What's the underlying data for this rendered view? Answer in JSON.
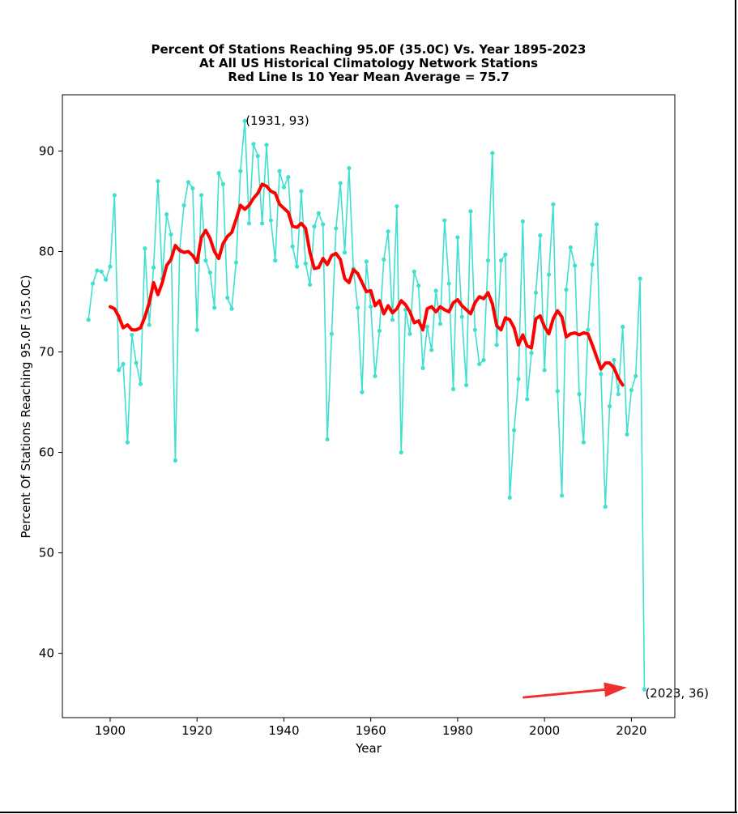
{
  "chart_data": {
    "type": "line",
    "title": [
      "Percent Of Stations Reaching 95.0F (35.0C) Vs. Year 1895-2023",
      "At All US Historical Climatology Network Stations",
      "Red Line Is 10 Year Mean  Average = 75.7"
    ],
    "xlabel": "Year",
    "ylabel": "Percent Of Stations Reaching 95.0F (35.0C)",
    "xlim": [
      1889,
      2030
    ],
    "ylim": [
      33.6,
      95.6
    ],
    "xticks": [
      1900,
      1920,
      1940,
      1960,
      1980,
      2000,
      2020
    ],
    "yticks": [
      40,
      50,
      60,
      70,
      80,
      90
    ],
    "grid": false,
    "colors": {
      "annual": "#40e0d0",
      "mean": "#ff0000",
      "arrow": "#f03030"
    },
    "series": [
      {
        "role": "annual",
        "x": [
          1895,
          1896,
          1897,
          1898,
          1899,
          1900,
          1901,
          1902,
          1903,
          1904,
          1905,
          1906,
          1907,
          1908,
          1909,
          1910,
          1911,
          1912,
          1913,
          1914,
          1915,
          1916,
          1917,
          1918,
          1919,
          1920,
          1921,
          1922,
          1923,
          1924,
          1925,
          1926,
          1927,
          1928,
          1929,
          1930,
          1931,
          1932,
          1933,
          1934,
          1935,
          1936,
          1937,
          1938,
          1939,
          1940,
          1941,
          1942,
          1943,
          1944,
          1945,
          1946,
          1947,
          1948,
          1949,
          1950,
          1951,
          1952,
          1953,
          1954,
          1955,
          1956,
          1957,
          1958,
          1959,
          1960,
          1961,
          1962,
          1963,
          1964,
          1965,
          1966,
          1967,
          1968,
          1969,
          1970,
          1971,
          1972,
          1973,
          1974,
          1975,
          1976,
          1977,
          1978,
          1979,
          1980,
          1981,
          1982,
          1983,
          1984,
          1985,
          1986,
          1987,
          1988,
          1989,
          1990,
          1991,
          1992,
          1993,
          1994,
          1995,
          1996,
          1997,
          1998,
          1999,
          2000,
          2001,
          2002,
          2003,
          2004,
          2005,
          2006,
          2007,
          2008,
          2009,
          2010,
          2011,
          2012,
          2013,
          2014,
          2015,
          2016,
          2017,
          2018,
          2019,
          2020,
          2021,
          2022,
          2023
        ],
        "values": [
          73.2,
          76.8,
          78.1,
          78.0,
          77.2,
          78.5,
          85.6,
          68.2,
          68.8,
          61.0,
          71.7,
          68.9,
          66.8,
          80.3,
          72.7,
          78.4,
          87.0,
          77.3,
          83.7,
          81.7,
          59.2,
          80.2,
          84.6,
          86.9,
          86.3,
          72.2,
          85.6,
          79.1,
          77.9,
          74.4,
          87.8,
          86.7,
          75.4,
          74.3,
          78.9,
          88.0,
          93.0,
          82.8,
          90.7,
          89.5,
          82.8,
          90.6,
          83.1,
          79.1,
          88.0,
          86.4,
          87.4,
          80.5,
          78.5,
          86.0,
          78.8,
          76.7,
          82.5,
          83.8,
          82.7,
          61.3,
          71.8,
          82.3,
          86.8,
          79.9,
          88.3,
          78.3,
          74.4,
          66.0,
          79.0,
          74.5,
          67.6,
          72.1,
          79.2,
          82.0,
          73.2,
          84.5,
          60.0,
          74.2,
          71.8,
          78.0,
          76.6,
          68.4,
          72.5,
          70.2,
          76.1,
          72.8,
          83.1,
          76.8,
          66.3,
          81.4,
          73.5,
          66.7,
          84.0,
          72.2,
          68.8,
          69.2,
          79.1,
          89.8,
          70.7,
          79.1,
          79.7,
          55.5,
          62.2,
          67.3,
          83.0,
          65.3,
          69.9,
          75.9,
          81.6,
          68.2,
          77.7,
          84.7,
          66.1,
          55.7,
          76.2,
          80.4,
          78.6,
          65.8,
          61.0,
          72.2,
          78.7,
          82.7,
          67.8,
          54.6,
          64.6,
          69.2,
          65.8,
          72.5,
          61.8,
          66.2,
          67.6,
          77.3,
          36.4
        ]
      },
      {
        "role": "mean",
        "x": [
          1900,
          1901,
          1902,
          1903,
          1904,
          1905,
          1906,
          1907,
          1908,
          1909,
          1910,
          1911,
          1912,
          1913,
          1914,
          1915,
          1916,
          1917,
          1918,
          1919,
          1920,
          1921,
          1922,
          1923,
          1924,
          1925,
          1926,
          1927,
          1928,
          1929,
          1930,
          1931,
          1932,
          1933,
          1934,
          1935,
          1936,
          1937,
          1938,
          1939,
          1940,
          1941,
          1942,
          1943,
          1944,
          1945,
          1946,
          1947,
          1948,
          1949,
          1950,
          1951,
          1952,
          1953,
          1954,
          1955,
          1956,
          1957,
          1958,
          1959,
          1960,
          1961,
          1962,
          1963,
          1964,
          1965,
          1966,
          1967,
          1968,
          1969,
          1970,
          1971,
          1972,
          1973,
          1974,
          1975,
          1976,
          1977,
          1978,
          1979,
          1980,
          1981,
          1982,
          1983,
          1984,
          1985,
          1986,
          1987,
          1988,
          1989,
          1990,
          1991,
          1992,
          1993,
          1994,
          1995,
          1996,
          1997,
          1998,
          1999,
          2000,
          2001,
          2002,
          2003,
          2004,
          2005,
          2006,
          2007,
          2008,
          2009,
          2010,
          2011,
          2012,
          2013,
          2014,
          2015,
          2016,
          2017,
          2018
        ],
        "values": [
          74.5,
          74.3,
          73.5,
          72.4,
          72.7,
          72.2,
          72.2,
          72.4,
          73.5,
          74.9,
          76.9,
          75.7,
          76.9,
          78.6,
          79.2,
          80.6,
          80.1,
          79.9,
          80.0,
          79.6,
          78.9,
          81.4,
          82.1,
          81.3,
          80.0,
          79.3,
          80.8,
          81.5,
          81.9,
          83.2,
          84.6,
          84.2,
          84.6,
          85.3,
          85.8,
          86.7,
          86.5,
          86.0,
          85.8,
          84.7,
          84.3,
          83.9,
          82.5,
          82.4,
          82.8,
          82.3,
          79.9,
          78.3,
          78.4,
          79.3,
          78.7,
          79.6,
          79.8,
          79.2,
          77.3,
          76.9,
          78.2,
          77.8,
          76.9,
          76.0,
          76.1,
          74.6,
          75.1,
          73.8,
          74.6,
          73.9,
          74.3,
          75.1,
          74.7,
          74.0,
          72.9,
          73.1,
          72.2,
          74.3,
          74.5,
          74.0,
          74.5,
          74.2,
          74.0,
          74.9,
          75.2,
          74.6,
          74.2,
          73.8,
          74.9,
          75.5,
          75.3,
          75.9,
          74.8,
          72.6,
          72.2,
          73.4,
          73.2,
          72.4,
          70.7,
          71.7,
          70.6,
          70.4,
          73.3,
          73.6,
          72.5,
          71.8,
          73.3,
          74.1,
          73.5,
          71.5,
          71.8,
          71.9,
          71.7,
          71.9,
          71.8,
          70.7,
          69.5,
          68.3,
          68.9,
          68.9,
          68.4,
          67.4,
          66.7
        ]
      }
    ],
    "annotations": [
      {
        "text": "(1931, 93)",
        "x": 1931,
        "y": 93
      },
      {
        "text": "(2023, 36)",
        "x": 2023,
        "y": 36
      }
    ],
    "arrow": {
      "from": [
        1995,
        35.6
      ],
      "to": [
        2019,
        36.6
      ]
    }
  }
}
